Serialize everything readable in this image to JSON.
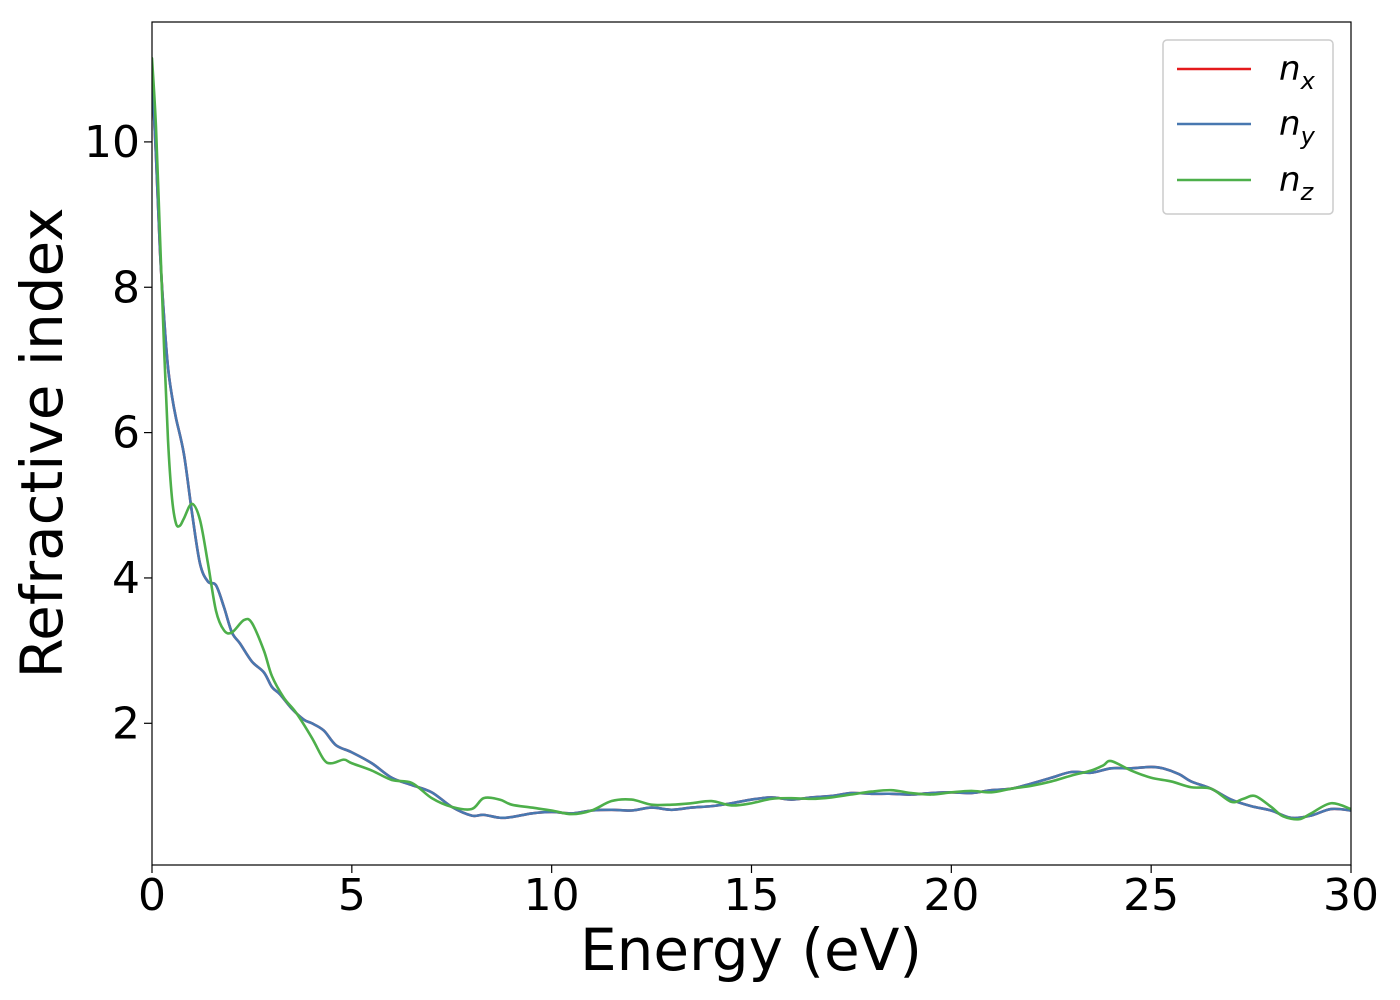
{
  "chart_data": {
    "type": "line",
    "title": "",
    "xlabel": "Energy (eV)",
    "ylabel": "Refractive index",
    "xlim": [
      0,
      30
    ],
    "ylim": [
      0.05,
      11.65
    ],
    "xticks": [
      0,
      5,
      10,
      15,
      20,
      25,
      30
    ],
    "xtick_labels": [
      "0",
      "5",
      "10",
      "15",
      "20",
      "25",
      "30"
    ],
    "yticks": [
      2,
      4,
      6,
      8,
      10
    ],
    "ytick_labels": [
      "2",
      "4",
      "6",
      "8",
      "10"
    ],
    "grid": false,
    "legend": {
      "position": "top-right",
      "entries": [
        {
          "series": "n_x",
          "main": "n",
          "sub": "x"
        },
        {
          "series": "n_y",
          "main": "n",
          "sub": "y"
        },
        {
          "series": "n_z",
          "main": "n",
          "sub": "z"
        }
      ]
    },
    "series": [
      {
        "name": "n_x",
        "color": "#e41a1c",
        "x": [
          0,
          0.1,
          0.2,
          0.3,
          0.4,
          0.5,
          0.6,
          0.8,
          1.0,
          1.2,
          1.4,
          1.6,
          1.8,
          2.0,
          2.2,
          2.5,
          2.8,
          3.0,
          3.2,
          3.5,
          3.8,
          4.0,
          4.3,
          4.6,
          5.0,
          5.5,
          6.0,
          6.5,
          7.0,
          7.5,
          8.0,
          8.3,
          8.7,
          9.0,
          9.5,
          10.0,
          10.5,
          11.0,
          11.5,
          12.0,
          12.5,
          13.0,
          13.5,
          14.0,
          14.5,
          15.0,
          15.5,
          16.0,
          16.5,
          17.0,
          17.5,
          18.0,
          18.5,
          19.0,
          19.5,
          20.0,
          20.5,
          21.0,
          21.5,
          22.0,
          22.5,
          23.0,
          23.5,
          24.0,
          24.5,
          25.0,
          25.3,
          25.7,
          26.0,
          26.5,
          27.0,
          27.5,
          28.0,
          28.5,
          29.0,
          29.5,
          30.0
        ],
        "y": [
          10.9,
          9.8,
          8.5,
          7.6,
          6.9,
          6.5,
          6.2,
          5.7,
          4.9,
          4.2,
          3.95,
          3.9,
          3.6,
          3.25,
          3.1,
          2.85,
          2.7,
          2.5,
          2.4,
          2.2,
          2.05,
          2.0,
          1.9,
          1.7,
          1.6,
          1.45,
          1.25,
          1.15,
          1.05,
          0.85,
          0.73,
          0.74,
          0.7,
          0.71,
          0.76,
          0.78,
          0.76,
          0.8,
          0.81,
          0.8,
          0.84,
          0.81,
          0.84,
          0.86,
          0.9,
          0.95,
          0.98,
          0.95,
          0.98,
          1.0,
          1.04,
          1.03,
          1.03,
          1.02,
          1.04,
          1.05,
          1.04,
          1.08,
          1.1,
          1.17,
          1.25,
          1.33,
          1.32,
          1.38,
          1.38,
          1.4,
          1.38,
          1.3,
          1.2,
          1.1,
          0.95,
          0.86,
          0.8,
          0.7,
          0.73,
          0.82,
          0.8
        ]
      },
      {
        "name": "n_y",
        "color": "#4878b0",
        "x": [
          0,
          0.1,
          0.2,
          0.3,
          0.4,
          0.5,
          0.6,
          0.8,
          1.0,
          1.2,
          1.4,
          1.6,
          1.8,
          2.0,
          2.2,
          2.5,
          2.8,
          3.0,
          3.2,
          3.5,
          3.8,
          4.0,
          4.3,
          4.6,
          5.0,
          5.5,
          6.0,
          6.5,
          7.0,
          7.5,
          8.0,
          8.3,
          8.7,
          9.0,
          9.5,
          10.0,
          10.5,
          11.0,
          11.5,
          12.0,
          12.5,
          13.0,
          13.5,
          14.0,
          14.5,
          15.0,
          15.5,
          16.0,
          16.5,
          17.0,
          17.5,
          18.0,
          18.5,
          19.0,
          19.5,
          20.0,
          20.5,
          21.0,
          21.5,
          22.0,
          22.5,
          23.0,
          23.5,
          24.0,
          24.5,
          25.0,
          25.3,
          25.7,
          26.0,
          26.5,
          27.0,
          27.5,
          28.0,
          28.5,
          29.0,
          29.5,
          30.0
        ],
        "y": [
          10.9,
          9.8,
          8.5,
          7.6,
          6.9,
          6.5,
          6.2,
          5.7,
          4.9,
          4.2,
          3.95,
          3.9,
          3.6,
          3.25,
          3.1,
          2.85,
          2.7,
          2.5,
          2.4,
          2.2,
          2.05,
          2.0,
          1.9,
          1.7,
          1.6,
          1.45,
          1.25,
          1.15,
          1.05,
          0.85,
          0.73,
          0.74,
          0.7,
          0.71,
          0.76,
          0.78,
          0.76,
          0.8,
          0.81,
          0.8,
          0.84,
          0.81,
          0.84,
          0.86,
          0.9,
          0.95,
          0.98,
          0.95,
          0.98,
          1.0,
          1.04,
          1.03,
          1.03,
          1.02,
          1.04,
          1.05,
          1.04,
          1.08,
          1.1,
          1.17,
          1.25,
          1.33,
          1.32,
          1.38,
          1.38,
          1.4,
          1.38,
          1.3,
          1.2,
          1.1,
          0.95,
          0.86,
          0.8,
          0.7,
          0.73,
          0.82,
          0.8
        ]
      },
      {
        "name": "n_z",
        "color": "#4daf4a",
        "x": [
          0,
          0.1,
          0.2,
          0.3,
          0.4,
          0.5,
          0.6,
          0.7,
          0.8,
          1.0,
          1.2,
          1.4,
          1.6,
          1.8,
          2.0,
          2.3,
          2.5,
          2.8,
          3.0,
          3.3,
          3.6,
          4.0,
          4.3,
          4.5,
          4.8,
          5.0,
          5.5,
          6.0,
          6.5,
          7.0,
          7.5,
          8.0,
          8.3,
          8.7,
          9.0,
          9.5,
          10.0,
          10.5,
          11.0,
          11.5,
          12.0,
          12.5,
          13.0,
          13.5,
          14.0,
          14.5,
          15.0,
          15.5,
          16.0,
          16.5,
          17.0,
          17.5,
          18.0,
          18.5,
          19.0,
          19.5,
          20.0,
          20.5,
          21.0,
          21.5,
          22.0,
          22.5,
          23.0,
          23.5,
          23.8,
          24.0,
          24.5,
          25.0,
          25.5,
          26.0,
          26.5,
          27.0,
          27.3,
          27.6,
          28.0,
          28.3,
          28.7,
          29.0,
          29.5,
          30.0
        ],
        "y": [
          11.15,
          10.2,
          8.7,
          7.2,
          5.9,
          5.1,
          4.75,
          4.72,
          4.82,
          5.02,
          4.8,
          4.2,
          3.55,
          3.28,
          3.25,
          3.42,
          3.38,
          3.0,
          2.65,
          2.35,
          2.15,
          1.8,
          1.5,
          1.45,
          1.5,
          1.45,
          1.35,
          1.22,
          1.18,
          0.97,
          0.85,
          0.82,
          0.97,
          0.95,
          0.88,
          0.84,
          0.8,
          0.75,
          0.8,
          0.93,
          0.95,
          0.88,
          0.88,
          0.9,
          0.93,
          0.87,
          0.9,
          0.96,
          0.97,
          0.96,
          0.98,
          1.02,
          1.06,
          1.08,
          1.04,
          1.02,
          1.05,
          1.07,
          1.05,
          1.1,
          1.14,
          1.2,
          1.28,
          1.35,
          1.42,
          1.48,
          1.35,
          1.25,
          1.2,
          1.12,
          1.1,
          0.92,
          0.96,
          1.0,
          0.85,
          0.72,
          0.68,
          0.76,
          0.9,
          0.82
        ]
      }
    ]
  }
}
